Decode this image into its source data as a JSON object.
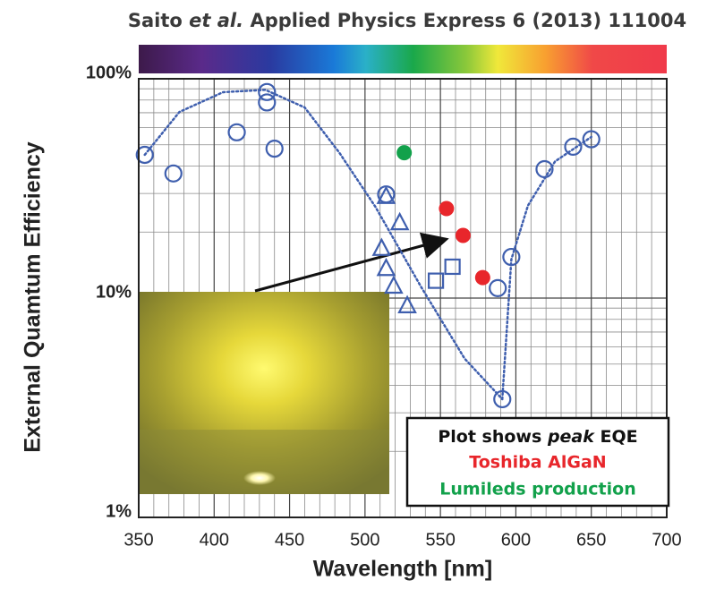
{
  "chart_data": {
    "type": "scatter",
    "title": {
      "author": "Saito",
      "etal": "et al.",
      "journal": "Applied Physics Express 6 (2013) 111004"
    },
    "xlabel": "Wavelength [nm]",
    "ylabel": "External Quamtum Efficiency",
    "xlim": [
      350,
      700
    ],
    "xticks": [
      350,
      400,
      450,
      500,
      550,
      600,
      650,
      700
    ],
    "ylim": [
      1,
      100
    ],
    "yscale": "log",
    "yticks": [
      {
        "value": 1,
        "label": "1%"
      },
      {
        "value": 10,
        "label": "10%"
      },
      {
        "value": 100,
        "label": "100%"
      }
    ],
    "grid": true,
    "note": [
      "Plot shows",
      "peak",
      "EQE"
    ],
    "series": [
      {
        "type": "line",
        "color": "#3f5fae",
        "x": [
          354,
          377,
          406,
          434,
          460,
          483,
          507,
          537,
          566,
          591
        ],
        "values": [
          45,
          70.6,
          86.9,
          89,
          74,
          46,
          26,
          11.3,
          5.3,
          3.46
        ]
      },
      {
        "type": "line",
        "color": "#3f5fae",
        "x": [
          591,
          597,
          608,
          626,
          650
        ],
        "values": [
          3.46,
          15,
          26.4,
          42,
          54.3
        ]
      },
      {
        "type": "scatter",
        "marker": "circle",
        "filled": false,
        "color": "#3f5fae",
        "x": [
          354,
          373,
          415,
          435,
          435,
          440,
          514,
          588,
          597,
          591,
          619,
          638,
          650
        ],
        "values": [
          45,
          37,
          57,
          87,
          78,
          48,
          29.7,
          11.1,
          15.4,
          3.46,
          38.7,
          49,
          53
        ]
      },
      {
        "type": "scatter",
        "marker": "triangle",
        "filled": false,
        "color": "#3f5fae",
        "x": [
          514,
          523,
          511,
          514,
          519,
          528
        ],
        "values": [
          29,
          22,
          16.8,
          13.6,
          11.3,
          9.2
        ]
      },
      {
        "type": "scatter",
        "marker": "square",
        "filled": false,
        "color": "#3f5fae",
        "x": [
          547,
          558
        ],
        "values": [
          12,
          13.9
        ]
      },
      {
        "type": "scatter",
        "marker": "circle",
        "filled": true,
        "name": "Toshiba AlGaN",
        "color": "#e8262b",
        "x": [
          554,
          565,
          578
        ],
        "values": [
          25.6,
          19.3,
          12.4
        ]
      },
      {
        "type": "scatter",
        "marker": "circle",
        "filled": true,
        "name": "Lumileds production",
        "color": "#12a14b",
        "x": [
          526
        ],
        "values": [
          46
        ]
      }
    ]
  }
}
